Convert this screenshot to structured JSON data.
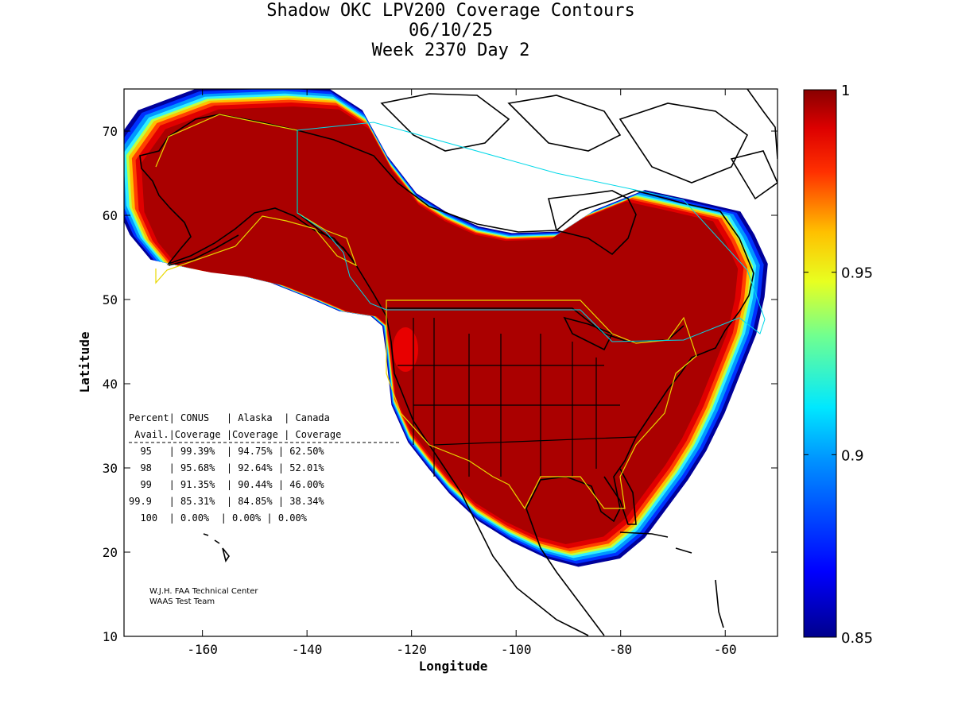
{
  "title": {
    "line1": "Shadow OKC LPV200 Coverage Contours",
    "line2": "06/10/25",
    "line3": "Week 2370 Day 2"
  },
  "axes": {
    "xlabel": "Longitude",
    "ylabel": "Latitude",
    "xlim": [
      -175,
      -50
    ],
    "ylim": [
      10,
      75
    ],
    "xticks": [
      -160,
      -140,
      -120,
      -100,
      -80,
      -60
    ],
    "yticks": [
      10,
      20,
      30,
      40,
      50,
      60,
      70
    ]
  },
  "colorbar": {
    "min": 0.85,
    "max": 1,
    "ticks": [
      0.85,
      0.9,
      0.95,
      1
    ],
    "tick_labels": [
      "0.85",
      "0.9",
      "0.95",
      "1"
    ]
  },
  "colors": {
    "coverage_full": "#aa0000",
    "region_border": "#e8d800",
    "cyan_border": "#00d8e8",
    "land": "#000000"
  },
  "coverage_table": {
    "header1": [
      "Percent",
      "CONUS",
      "Alaska",
      "Canada"
    ],
    "header2": [
      "Avail.",
      "Coverage",
      "Coverage",
      "Coverage"
    ],
    "rows": [
      [
        "95",
        "99.39%",
        "94.75%",
        "62.50%"
      ],
      [
        "98",
        "95.68%",
        "92.64%",
        "52.01%"
      ],
      [
        "99",
        "91.35%",
        "90.44%",
        "46.00%"
      ],
      [
        "99.9",
        "85.31%",
        "84.85%",
        "38.34%"
      ],
      [
        "100",
        "0.00%",
        "0.00%",
        "0.00%"
      ]
    ]
  },
  "credit": {
    "line1": "W.J.H. FAA Technical Center",
    "line2": "WAAS Test Team"
  },
  "chart_data": {
    "type": "contour-map",
    "title": "Shadow OKC LPV200 Coverage Contours",
    "xlabel": "Longitude",
    "ylabel": "Latitude",
    "xlim": [
      -175,
      -50
    ],
    "ylim": [
      10,
      75
    ],
    "color_scale": [
      0.85,
      1
    ],
    "regions": [
      "CONUS",
      "Alaska",
      "Canada"
    ],
    "availability_percent": [
      95,
      98,
      99,
      99.9,
      100
    ],
    "coverage": {
      "CONUS": [
        99.39,
        95.68,
        91.35,
        85.31,
        0.0
      ],
      "Alaska": [
        94.75,
        92.64,
        90.44,
        84.85,
        0.0
      ],
      "Canada": [
        62.5,
        52.01,
        46.0,
        38.34,
        0.0
      ]
    }
  }
}
